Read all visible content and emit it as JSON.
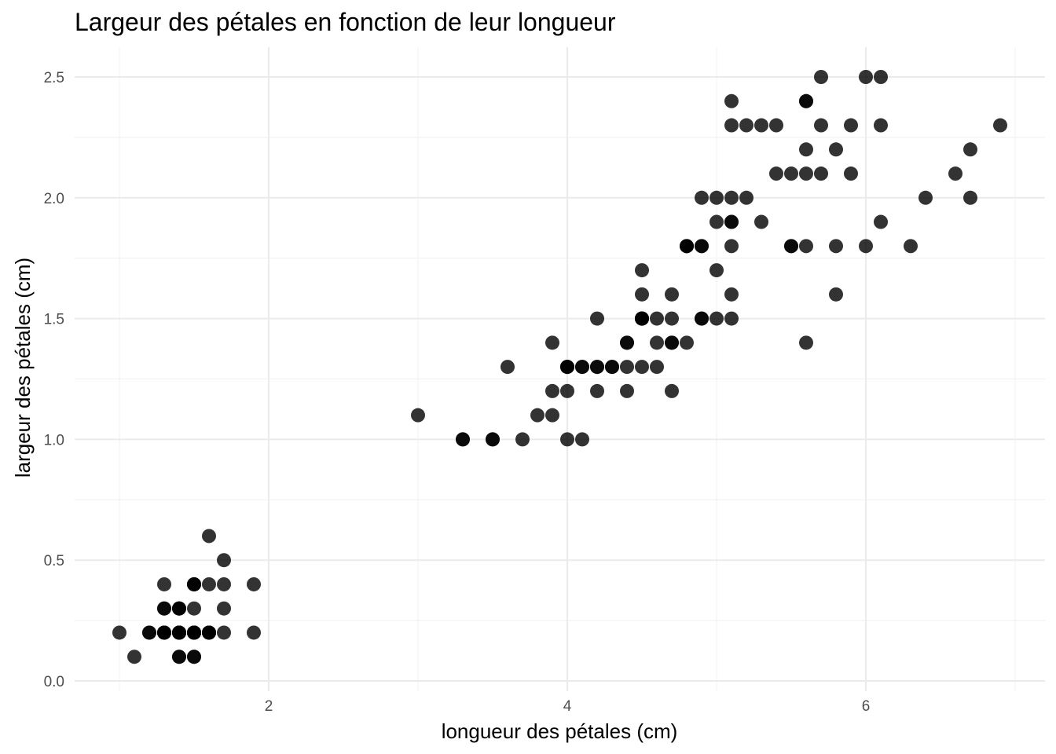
{
  "chart_data": {
    "type": "scatter",
    "title": "Largeur des pétales en fonction de leur longueur",
    "xlabel": "longueur des pétales (cm)",
    "ylabel": "largeur des pétales (cm)",
    "xlim": [
      0.7,
      7.2
    ],
    "ylim": [
      0.0,
      2.6
    ],
    "x_ticks": [
      2,
      4,
      6
    ],
    "x_tick_labels": [
      "2",
      "4",
      "6"
    ],
    "y_ticks": [
      0.0,
      0.5,
      1.0,
      1.5,
      2.0,
      2.5
    ],
    "y_tick_labels": [
      "0.0",
      "0.5",
      "1.0",
      "1.5",
      "2.0",
      "2.5"
    ],
    "grid": true,
    "point_color": "#000000",
    "point_opacity": 0.8,
    "x": [
      1.4,
      1.4,
      1.3,
      1.5,
      1.4,
      1.7,
      1.4,
      1.5,
      1.4,
      1.5,
      1.5,
      1.6,
      1.4,
      1.1,
      1.2,
      1.5,
      1.3,
      1.4,
      1.7,
      1.5,
      1.7,
      1.5,
      1.0,
      1.7,
      1.9,
      1.6,
      1.6,
      1.5,
      1.4,
      1.6,
      1.6,
      1.5,
      1.5,
      1.4,
      1.5,
      1.2,
      1.3,
      1.4,
      1.3,
      1.5,
      1.3,
      1.3,
      1.3,
      1.6,
      1.9,
      1.4,
      1.6,
      1.4,
      1.5,
      1.4,
      4.7,
      4.5,
      4.9,
      4.0,
      4.6,
      4.5,
      4.7,
      3.3,
      4.6,
      3.9,
      3.5,
      4.2,
      4.0,
      4.7,
      3.6,
      4.4,
      4.5,
      4.1,
      4.5,
      3.9,
      4.8,
      4.0,
      4.9,
      4.7,
      4.3,
      4.4,
      4.8,
      5.0,
      4.5,
      3.5,
      3.8,
      3.7,
      3.9,
      5.1,
      4.5,
      4.5,
      4.7,
      4.4,
      4.1,
      4.0,
      4.4,
      4.6,
      4.0,
      3.3,
      4.2,
      4.2,
      4.2,
      4.3,
      3.0,
      4.1,
      6.0,
      5.1,
      5.9,
      5.6,
      5.8,
      6.6,
      4.5,
      6.3,
      5.8,
      6.1,
      5.1,
      5.3,
      5.5,
      5.0,
      5.1,
      5.3,
      5.5,
      6.7,
      6.9,
      5.0,
      5.7,
      4.9,
      6.7,
      4.9,
      5.7,
      6.0,
      4.8,
      4.9,
      5.6,
      5.8,
      6.1,
      6.4,
      5.6,
      5.1,
      5.6,
      6.1,
      5.6,
      5.5,
      4.8,
      5.4,
      5.6,
      5.1,
      5.1,
      5.9,
      5.7,
      5.2,
      5.0,
      5.2,
      5.4,
      5.1
    ],
    "y": [
      0.2,
      0.2,
      0.2,
      0.2,
      0.2,
      0.4,
      0.3,
      0.2,
      0.2,
      0.1,
      0.2,
      0.2,
      0.1,
      0.1,
      0.2,
      0.4,
      0.4,
      0.3,
      0.3,
      0.3,
      0.2,
      0.4,
      0.2,
      0.5,
      0.2,
      0.2,
      0.4,
      0.2,
      0.2,
      0.2,
      0.2,
      0.4,
      0.1,
      0.2,
      0.2,
      0.2,
      0.2,
      0.1,
      0.2,
      0.2,
      0.3,
      0.3,
      0.2,
      0.6,
      0.4,
      0.3,
      0.2,
      0.2,
      0.2,
      0.2,
      1.4,
      1.5,
      1.5,
      1.3,
      1.5,
      1.3,
      1.6,
      1.0,
      1.3,
      1.4,
      1.0,
      1.5,
      1.0,
      1.4,
      1.3,
      1.4,
      1.5,
      1.0,
      1.5,
      1.1,
      1.8,
      1.3,
      1.5,
      1.2,
      1.3,
      1.4,
      1.4,
      1.7,
      1.5,
      1.0,
      1.1,
      1.0,
      1.2,
      1.6,
      1.5,
      1.6,
      1.5,
      1.3,
      1.3,
      1.3,
      1.2,
      1.4,
      1.2,
      1.0,
      1.3,
      1.2,
      1.3,
      1.3,
      1.1,
      1.3,
      2.5,
      1.9,
      2.1,
      1.8,
      2.2,
      2.1,
      1.7,
      1.8,
      1.8,
      2.5,
      2.0,
      1.9,
      2.1,
      2.0,
      2.4,
      2.3,
      1.8,
      2.2,
      2.3,
      1.5,
      2.3,
      2.0,
      2.0,
      1.8,
      2.1,
      1.8,
      1.8,
      1.8,
      2.1,
      1.6,
      1.9,
      2.0,
      2.2,
      1.5,
      1.4,
      2.3,
      2.4,
      1.8,
      1.8,
      2.1,
      2.4,
      2.3,
      1.9,
      2.3,
      2.5,
      2.3,
      1.9,
      2.0,
      2.3,
      1.8
    ]
  }
}
